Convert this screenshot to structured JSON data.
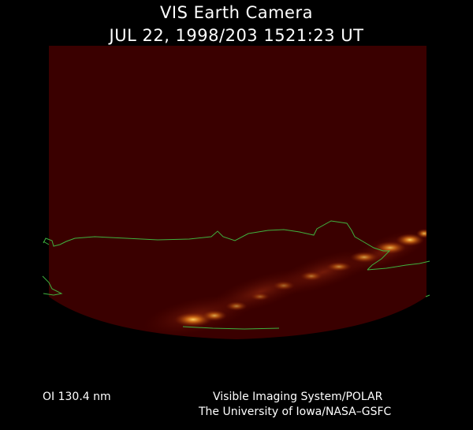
{
  "header": {
    "title": "VIS Earth Camera",
    "timestamp": "JUL 22, 1998/203 1521:23 UT"
  },
  "footer": {
    "filter": "OI  130.4 nm",
    "credit_line1": "Visible Imaging System/POLAR",
    "credit_line2": "The University of Iowa/NASA–GSFC"
  },
  "colors": {
    "background": "#000000",
    "earth_disk": "#3a0000",
    "aurora_dim": "#8a2a08",
    "aurora_bright": "#ffb030",
    "coastline": "#3fb23f",
    "text": "#ffffff"
  },
  "image": {
    "subject": "earth-disk-aurora-oval",
    "overlay": "continent-coastlines"
  }
}
